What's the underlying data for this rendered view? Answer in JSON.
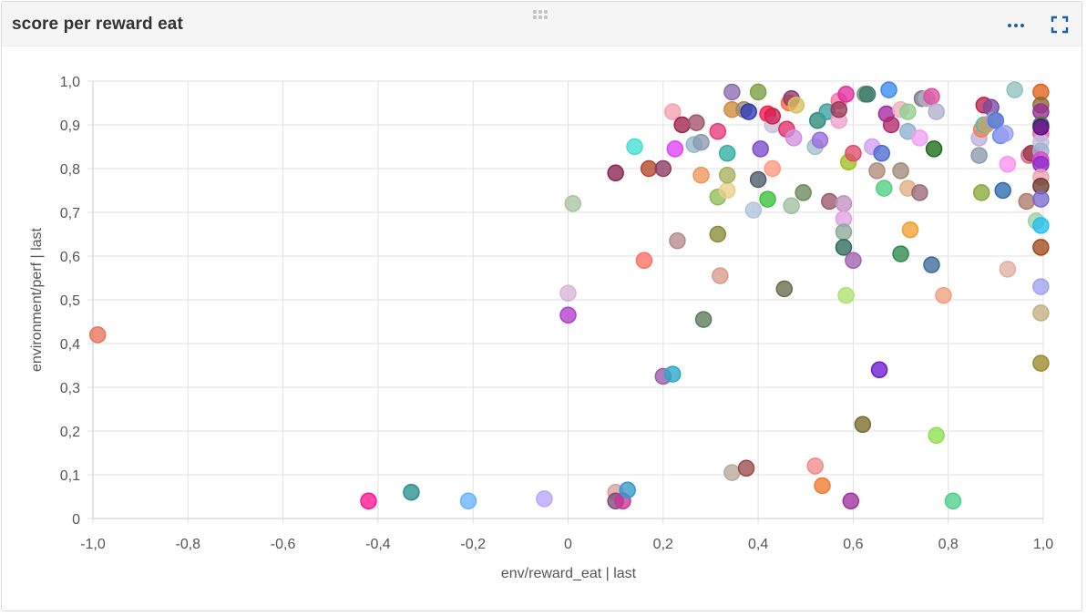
{
  "panel": {
    "title": "score per reward eat",
    "drag_icon": "drag-handle-icon",
    "more_icon": "more-options-icon",
    "expand_icon": "fullscreen-expand-icon",
    "accent_color": "#1f5fa8"
  },
  "chart_data": {
    "type": "scatter",
    "title": "score per reward eat",
    "xlabel": "env/reward_eat | last",
    "ylabel": "environment/perf | last",
    "xlim": [
      -1.0,
      1.0
    ],
    "ylim": [
      0,
      1.0
    ],
    "x_ticks": [
      "-1,0",
      "-0,8",
      "-0,6",
      "-0,4",
      "-0,2",
      "0",
      "0,2",
      "0,4",
      "0,6",
      "0,8",
      "1,0"
    ],
    "y_ticks": [
      "0",
      "0,1",
      "0,2",
      "0,3",
      "0,4",
      "0,5",
      "0,6",
      "0,7",
      "0,8",
      "0,9",
      "1,0"
    ],
    "grid": true,
    "points": [
      {
        "x": -0.99,
        "y": 0.42,
        "color": "#e8735a"
      },
      {
        "x": -0.42,
        "y": 0.04,
        "color": "#ff1493"
      },
      {
        "x": -0.33,
        "y": 0.06,
        "color": "#2a8f8f"
      },
      {
        "x": -0.21,
        "y": 0.04,
        "color": "#66b3ff"
      },
      {
        "x": -0.05,
        "y": 0.045,
        "color": "#b7a5ff"
      },
      {
        "x": 0.0,
        "y": 0.515,
        "color": "#d8b4d8"
      },
      {
        "x": 0.0,
        "y": 0.465,
        "color": "#b33ccc"
      },
      {
        "x": 0.01,
        "y": 0.72,
        "color": "#a9c4a0"
      },
      {
        "x": 0.1,
        "y": 0.06,
        "color": "#d9a0a0"
      },
      {
        "x": 0.1,
        "y": 0.04,
        "color": "#7a4d7a"
      },
      {
        "x": 0.115,
        "y": 0.04,
        "color": "#cc3399"
      },
      {
        "x": 0.125,
        "y": 0.065,
        "color": "#3399cc"
      },
      {
        "x": 0.1,
        "y": 0.79,
        "color": "#8b2252"
      },
      {
        "x": 0.14,
        "y": 0.85,
        "color": "#40e0d0"
      },
      {
        "x": 0.16,
        "y": 0.59,
        "color": "#ff6f61"
      },
      {
        "x": 0.17,
        "y": 0.8,
        "color": "#b5442a"
      },
      {
        "x": 0.2,
        "y": 0.8,
        "color": "#8b3a62"
      },
      {
        "x": 0.2,
        "y": 0.325,
        "color": "#9a5aaa"
      },
      {
        "x": 0.22,
        "y": 0.33,
        "color": "#28a8c8"
      },
      {
        "x": 0.22,
        "y": 0.93,
        "color": "#f4a0b0"
      },
      {
        "x": 0.225,
        "y": 0.845,
        "color": "#e040fb"
      },
      {
        "x": 0.23,
        "y": 0.635,
        "color": "#b38a8a"
      },
      {
        "x": 0.24,
        "y": 0.9,
        "color": "#a0204a"
      },
      {
        "x": 0.265,
        "y": 0.855,
        "color": "#8fb8c8"
      },
      {
        "x": 0.27,
        "y": 0.905,
        "color": "#a3526a"
      },
      {
        "x": 0.28,
        "y": 0.785,
        "color": "#f0955a"
      },
      {
        "x": 0.28,
        "y": 0.86,
        "color": "#8c9ab0"
      },
      {
        "x": 0.285,
        "y": 0.455,
        "color": "#5a7a5a"
      },
      {
        "x": 0.315,
        "y": 0.735,
        "color": "#8fbc5a"
      },
      {
        "x": 0.315,
        "y": 0.885,
        "color": "#e83a7a"
      },
      {
        "x": 0.315,
        "y": 0.65,
        "color": "#8a8a3a"
      },
      {
        "x": 0.32,
        "y": 0.555,
        "color": "#d99a8a"
      },
      {
        "x": 0.335,
        "y": 0.75,
        "color": "#e8d08a"
      },
      {
        "x": 0.335,
        "y": 0.785,
        "color": "#a8b060"
      },
      {
        "x": 0.335,
        "y": 0.835,
        "color": "#30b0a0"
      },
      {
        "x": 0.345,
        "y": 0.975,
        "color": "#8c6ab0"
      },
      {
        "x": 0.345,
        "y": 0.935,
        "color": "#d08a3a"
      },
      {
        "x": 0.345,
        "y": 0.105,
        "color": "#b8a898"
      },
      {
        "x": 0.37,
        "y": 0.935,
        "color": "#a08a6a"
      },
      {
        "x": 0.375,
        "y": 0.115,
        "color": "#9a4a4a"
      },
      {
        "x": 0.38,
        "y": 0.93,
        "color": "#2a3ab8"
      },
      {
        "x": 0.39,
        "y": 0.705,
        "color": "#b0c4d8"
      },
      {
        "x": 0.4,
        "y": 0.975,
        "color": "#7aa040"
      },
      {
        "x": 0.4,
        "y": 0.775,
        "color": "#4a5a6a"
      },
      {
        "x": 0.405,
        "y": 0.845,
        "color": "#7a4ad0"
      },
      {
        "x": 0.42,
        "y": 0.73,
        "color": "#3ac03a"
      },
      {
        "x": 0.42,
        "y": 0.925,
        "color": "#ff1a4a"
      },
      {
        "x": 0.43,
        "y": 0.8,
        "color": "#ff9a7a"
      },
      {
        "x": 0.43,
        "y": 0.9,
        "color": "#c8c0d8"
      },
      {
        "x": 0.43,
        "y": 0.92,
        "color": "#d02050"
      },
      {
        "x": 0.455,
        "y": 0.525,
        "color": "#6a6a4a"
      },
      {
        "x": 0.46,
        "y": 0.89,
        "color": "#e0306a"
      },
      {
        "x": 0.465,
        "y": 0.95,
        "color": "#ff6a3a"
      },
      {
        "x": 0.47,
        "y": 0.96,
        "color": "#8a3a6a"
      },
      {
        "x": 0.47,
        "y": 0.715,
        "color": "#a0c0a0"
      },
      {
        "x": 0.475,
        "y": 0.87,
        "color": "#d090e0"
      },
      {
        "x": 0.48,
        "y": 0.945,
        "color": "#d8c060"
      },
      {
        "x": 0.495,
        "y": 0.745,
        "color": "#6a8a5a"
      },
      {
        "x": 0.52,
        "y": 0.12,
        "color": "#f08a8a"
      },
      {
        "x": 0.52,
        "y": 0.85,
        "color": "#a0c0c0"
      },
      {
        "x": 0.525,
        "y": 0.91,
        "color": "#2a8a7a"
      },
      {
        "x": 0.53,
        "y": 0.865,
        "color": "#9a6ae0"
      },
      {
        "x": 0.535,
        "y": 0.075,
        "color": "#f07a30"
      },
      {
        "x": 0.545,
        "y": 0.93,
        "color": "#3aa0a0"
      },
      {
        "x": 0.55,
        "y": 0.725,
        "color": "#9a5a6a"
      },
      {
        "x": 0.57,
        "y": 0.955,
        "color": "#ff70a0"
      },
      {
        "x": 0.57,
        "y": 0.91,
        "color": "#f0a0d0"
      },
      {
        "x": 0.57,
        "y": 0.935,
        "color": "#9a3a5a"
      },
      {
        "x": 0.58,
        "y": 0.72,
        "color": "#c090c0"
      },
      {
        "x": 0.58,
        "y": 0.685,
        "color": "#e0a0e0"
      },
      {
        "x": 0.58,
        "y": 0.655,
        "color": "#8aaa9a"
      },
      {
        "x": 0.58,
        "y": 0.62,
        "color": "#2a6a5a"
      },
      {
        "x": 0.585,
        "y": 0.97,
        "color": "#e030a0"
      },
      {
        "x": 0.585,
        "y": 0.51,
        "color": "#b0e070"
      },
      {
        "x": 0.59,
        "y": 0.815,
        "color": "#a0c020"
      },
      {
        "x": 0.595,
        "y": 0.04,
        "color": "#a030a0"
      },
      {
        "x": 0.6,
        "y": 0.59,
        "color": "#a060b0"
      },
      {
        "x": 0.6,
        "y": 0.835,
        "color": "#e04a6a"
      },
      {
        "x": 0.62,
        "y": 0.215,
        "color": "#7a6a2a"
      },
      {
        "x": 0.625,
        "y": 0.97,
        "color": "#6a9a7a"
      },
      {
        "x": 0.63,
        "y": 0.97,
        "color": "#3a7a6a"
      },
      {
        "x": 0.64,
        "y": 0.85,
        "color": "#d0a0f0"
      },
      {
        "x": 0.65,
        "y": 0.795,
        "color": "#b08a7a"
      },
      {
        "x": 0.655,
        "y": 0.34,
        "color": "#6a1ad0"
      },
      {
        "x": 0.66,
        "y": 0.835,
        "color": "#4a6ad0"
      },
      {
        "x": 0.665,
        "y": 0.755,
        "color": "#50d080"
      },
      {
        "x": 0.67,
        "y": 0.925,
        "color": "#a02aa0"
      },
      {
        "x": 0.675,
        "y": 0.98,
        "color": "#3a8af0"
      },
      {
        "x": 0.68,
        "y": 0.9,
        "color": "#b02a6a"
      },
      {
        "x": 0.7,
        "y": 0.795,
        "color": "#a08a7a"
      },
      {
        "x": 0.7,
        "y": 0.605,
        "color": "#2a8a4a"
      },
      {
        "x": 0.7,
        "y": 0.935,
        "color": "#f0b0c0"
      },
      {
        "x": 0.715,
        "y": 0.93,
        "color": "#90d090"
      },
      {
        "x": 0.715,
        "y": 0.755,
        "color": "#e0b080"
      },
      {
        "x": 0.715,
        "y": 0.885,
        "color": "#90b0d0"
      },
      {
        "x": 0.72,
        "y": 0.66,
        "color": "#f0a030"
      },
      {
        "x": 0.74,
        "y": 0.745,
        "color": "#9a6a7a"
      },
      {
        "x": 0.74,
        "y": 0.87,
        "color": "#f0a0f0"
      },
      {
        "x": 0.745,
        "y": 0.96,
        "color": "#7a7a8a"
      },
      {
        "x": 0.755,
        "y": 0.96,
        "color": "#b0b0c0"
      },
      {
        "x": 0.765,
        "y": 0.58,
        "color": "#3a6a9a"
      },
      {
        "x": 0.765,
        "y": 0.965,
        "color": "#e050a0"
      },
      {
        "x": 0.77,
        "y": 0.845,
        "color": "#1a6a1a"
      },
      {
        "x": 0.775,
        "y": 0.93,
        "color": "#b0b0d0"
      },
      {
        "x": 0.775,
        "y": 0.19,
        "color": "#90e050"
      },
      {
        "x": 0.79,
        "y": 0.51,
        "color": "#f0a080"
      },
      {
        "x": 0.81,
        "y": 0.04,
        "color": "#4ad08a"
      },
      {
        "x": 0.865,
        "y": 0.87,
        "color": "#c0b0e0"
      },
      {
        "x": 0.865,
        "y": 0.83,
        "color": "#8a9aaa"
      },
      {
        "x": 0.87,
        "y": 0.89,
        "color": "#f08050"
      },
      {
        "x": 0.87,
        "y": 0.745,
        "color": "#8aaa3a"
      },
      {
        "x": 0.875,
        "y": 0.9,
        "color": "#40c0c0"
      },
      {
        "x": 0.875,
        "y": 0.945,
        "color": "#c0204a"
      },
      {
        "x": 0.88,
        "y": 0.9,
        "color": "#d0a060"
      },
      {
        "x": 0.89,
        "y": 0.94,
        "color": "#7a4aa0"
      },
      {
        "x": 0.895,
        "y": 0.91,
        "color": "#a0a0d0"
      },
      {
        "x": 0.9,
        "y": 0.91,
        "color": "#5a7ad0"
      },
      {
        "x": 0.91,
        "y": 0.875,
        "color": "#6a8af0"
      },
      {
        "x": 0.915,
        "y": 0.75,
        "color": "#2a6ab0"
      },
      {
        "x": 0.92,
        "y": 0.88,
        "color": "#9aa0f0"
      },
      {
        "x": 0.925,
        "y": 0.57,
        "color": "#e0b0a0"
      },
      {
        "x": 0.925,
        "y": 0.81,
        "color": "#ff90f0"
      },
      {
        "x": 0.94,
        "y": 0.98,
        "color": "#90c0c0"
      },
      {
        "x": 0.965,
        "y": 0.725,
        "color": "#b07a6a"
      },
      {
        "x": 0.97,
        "y": 0.83,
        "color": "#d06a8a"
      },
      {
        "x": 0.975,
        "y": 0.835,
        "color": "#9a3a4a"
      },
      {
        "x": 0.985,
        "y": 0.68,
        "color": "#a0d0a0"
      },
      {
        "x": 0.995,
        "y": 0.975,
        "color": "#e0601a"
      },
      {
        "x": 0.995,
        "y": 0.945,
        "color": "#8a6a2a"
      },
      {
        "x": 0.995,
        "y": 0.93,
        "color": "#9a2a9a"
      },
      {
        "x": 0.995,
        "y": 0.9,
        "color": "#3a8a3a"
      },
      {
        "x": 0.995,
        "y": 0.88,
        "color": "#f060b0"
      },
      {
        "x": 0.995,
        "y": 0.86,
        "color": "#c0c0e0"
      },
      {
        "x": 0.995,
        "y": 0.84,
        "color": "#a0b0d0"
      },
      {
        "x": 0.995,
        "y": 0.82,
        "color": "#e04ac0"
      },
      {
        "x": 0.995,
        "y": 0.81,
        "color": "#8a2ad0"
      },
      {
        "x": 0.995,
        "y": 0.78,
        "color": "#f0a0b0"
      },
      {
        "x": 0.995,
        "y": 0.76,
        "color": "#6a3a2a"
      },
      {
        "x": 0.995,
        "y": 0.73,
        "color": "#7a6ad0"
      },
      {
        "x": 0.995,
        "y": 0.67,
        "color": "#20c0f0"
      },
      {
        "x": 0.995,
        "y": 0.62,
        "color": "#a04a1a"
      },
      {
        "x": 0.995,
        "y": 0.53,
        "color": "#a0a0f0"
      },
      {
        "x": 0.995,
        "y": 0.47,
        "color": "#c0b080"
      },
      {
        "x": 0.995,
        "y": 0.355,
        "color": "#9a8a2a"
      },
      {
        "x": 0.995,
        "y": 0.895,
        "color": "#5a0a8a"
      }
    ]
  }
}
